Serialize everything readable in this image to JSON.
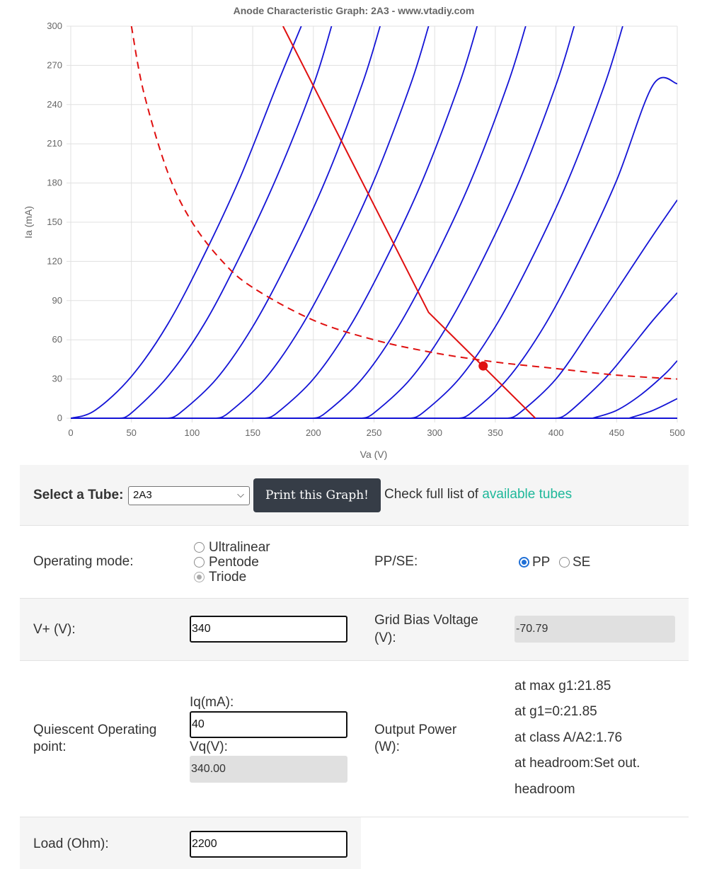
{
  "chart_data": {
    "type": "line",
    "title": "Anode Characteristic Graph: 2A3 - www.vtadiy.com",
    "xlabel": "Va (V)",
    "ylabel": "Ia (mA)",
    "xlim": [
      0,
      500
    ],
    "ylim": [
      0,
      300
    ],
    "xticks": [
      "0",
      "50",
      "100",
      "150",
      "200",
      "250",
      "300",
      "350",
      "400",
      "450",
      "500"
    ],
    "yticks": [
      "0",
      "30",
      "60",
      "90",
      "120",
      "150",
      "180",
      "210",
      "240",
      "270",
      "300"
    ],
    "grid": true,
    "colors": {
      "curves": "#1414d6",
      "load_line": "#e01010",
      "max_dissipation": "#e01010",
      "operating_point": "#e01010"
    },
    "series": [
      {
        "x": [
          0,
          20,
          50,
          80,
          110,
          140,
          170,
          190
        ],
        "y": [
          0,
          6,
          32,
          72,
          125,
          185,
          255,
          300
        ]
      },
      {
        "x": [
          40,
          50,
          80,
          110,
          140,
          170,
          200,
          215
        ],
        "y": [
          0,
          4,
          32,
          72,
          125,
          185,
          255,
          300
        ]
      },
      {
        "x": [
          80,
          90,
          120,
          150,
          180,
          210,
          240,
          255
        ],
        "y": [
          0,
          4,
          30,
          70,
          122,
          182,
          255,
          300
        ]
      },
      {
        "x": [
          120,
          130,
          160,
          190,
          220,
          250,
          280,
          295
        ],
        "y": [
          0,
          4,
          30,
          70,
          122,
          182,
          255,
          300
        ]
      },
      {
        "x": [
          160,
          170,
          200,
          230,
          260,
          290,
          320,
          335
        ],
        "y": [
          0,
          4,
          30,
          70,
          122,
          182,
          255,
          300
        ]
      },
      {
        "x": [
          200,
          210,
          240,
          270,
          300,
          330,
          360,
          375
        ],
        "y": [
          0,
          4,
          30,
          70,
          122,
          182,
          255,
          300
        ]
      },
      {
        "x": [
          240,
          250,
          280,
          310,
          340,
          370,
          400,
          415
        ],
        "y": [
          0,
          4,
          30,
          70,
          122,
          182,
          255,
          300
        ]
      },
      {
        "x": [
          280,
          290,
          320,
          350,
          380,
          410,
          440,
          455
        ],
        "y": [
          0,
          4,
          30,
          70,
          122,
          182,
          255,
          300
        ]
      },
      {
        "x": [
          320,
          330,
          360,
          390,
          420,
          450,
          480,
          500
        ],
        "y": [
          0,
          4,
          30,
          70,
          122,
          182,
          255,
          256
        ]
      },
      {
        "x": [
          360,
          370,
          400,
          430,
          460,
          480,
          500
        ],
        "y": [
          0,
          4,
          30,
          70,
          112,
          140,
          167
        ]
      },
      {
        "x": [
          400,
          410,
          440,
          460,
          480,
          500
        ],
        "y": [
          0,
          4,
          30,
          52,
          75,
          96
        ]
      },
      {
        "x": [
          430,
          450,
          470,
          490,
          500
        ],
        "y": [
          0,
          6,
          18,
          34,
          44
        ]
      },
      {
        "x": [
          460,
          480,
          500
        ],
        "y": [
          0,
          6,
          15
        ]
      }
    ],
    "load_line": {
      "x": [
        175,
        295,
        383
      ],
      "y": [
        300,
        81,
        0
      ]
    },
    "max_dissipation": {
      "x": [
        50,
        60,
        80,
        100,
        125,
        150,
        200,
        250,
        300,
        350,
        400,
        450,
        500
      ],
      "y": [
        300,
        250,
        188,
        150,
        120,
        100,
        75,
        60,
        50,
        43,
        38,
        33,
        30
      ]
    },
    "operating_point": {
      "x": 340,
      "y": 40
    }
  },
  "controls": {
    "select_label": "Select a Tube:",
    "tube_selected": "2A3",
    "print_button": "Print this Graph!",
    "check_text": "Check full list of",
    "available_link": "available tubes"
  },
  "mode": {
    "label": "Operating mode:",
    "options": [
      "Ultralinear",
      "Pentode",
      "Triode"
    ],
    "selected": "Triode",
    "ppse_label": "PP/SE:",
    "pp": "PP",
    "se": "SE"
  },
  "vplus": {
    "label": "V+ (V):",
    "value": "340",
    "grid_bias_label_1": "Grid Bias Voltage",
    "grid_bias_label_2": "(V):",
    "grid_bias_value": "-70.79"
  },
  "quiescent": {
    "label_1": "Quiescent Operating",
    "label_2": "point:",
    "iq_label": "Iq(mA):",
    "iq_value": "40",
    "vq_label": "Vq(V):",
    "vq_value": "340.00",
    "output_label_1": "Output Power",
    "output_label_2": "(W):",
    "at_max_g1": "at max g1:21.85",
    "at_g1_0": "at g1=0:21.85",
    "at_class_a": "at class A/A2:1.76",
    "at_headroom": "at headroom:Set out.",
    "headroom": "headroom"
  },
  "load": {
    "label": "Load (Ohm):",
    "value": "2200"
  }
}
